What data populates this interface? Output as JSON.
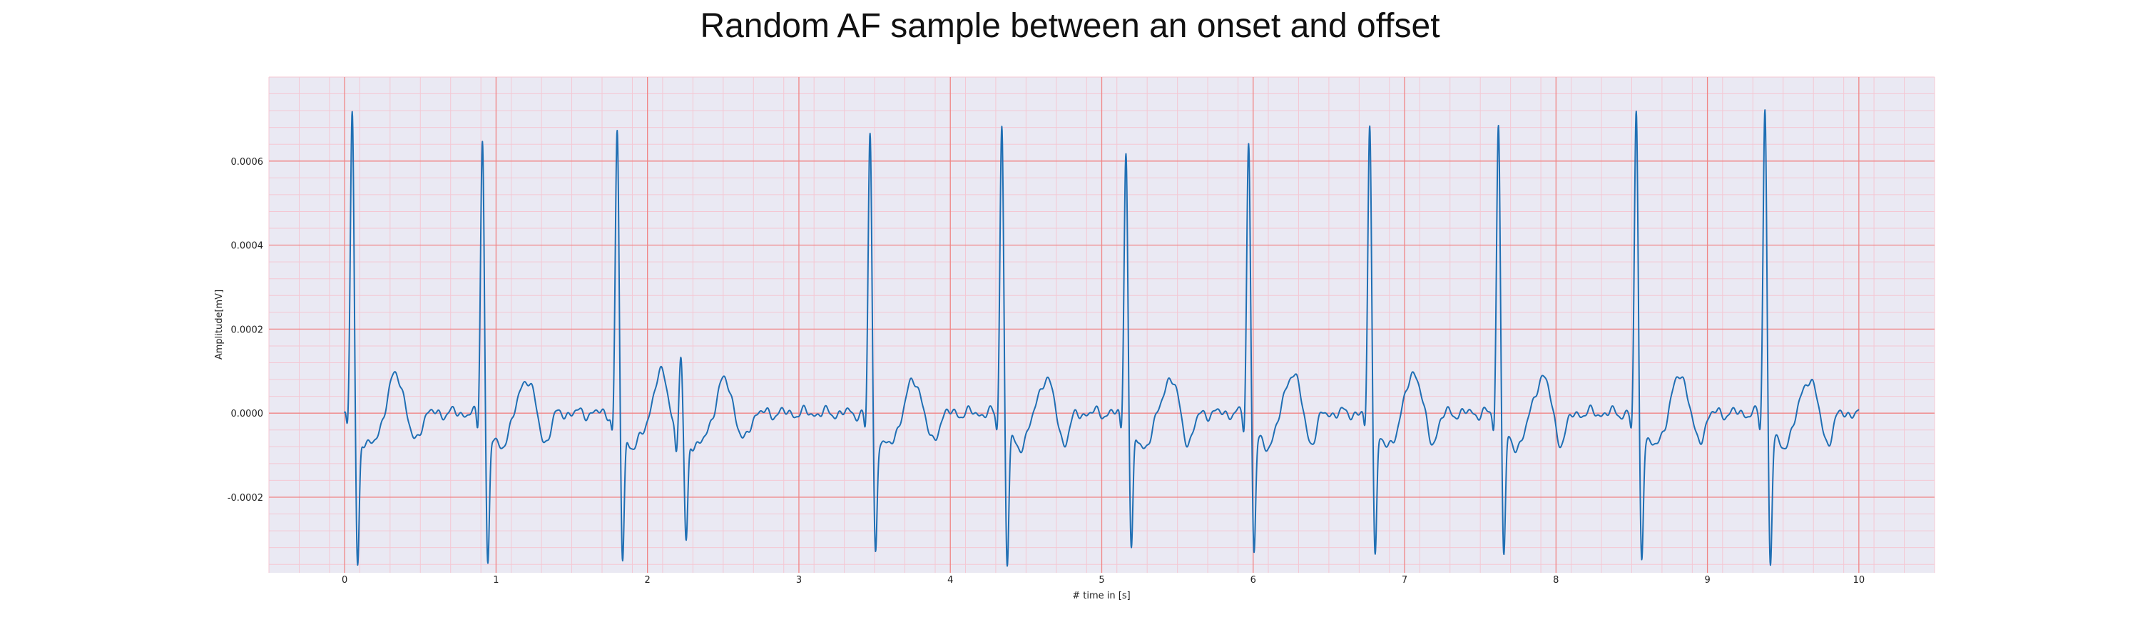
{
  "chart_data": {
    "type": "line",
    "title": "Random AF sample between an onset and offset",
    "xlabel": "# time in [s]",
    "ylabel": "Amplitude[mV]",
    "xlim": [
      -0.5,
      10.5
    ],
    "ylim": [
      -0.00038,
      0.0008
    ],
    "x_ticks": [
      0,
      1,
      2,
      3,
      4,
      5,
      6,
      7,
      8,
      9,
      10
    ],
    "x_tick_labels": [
      "0",
      "1",
      "2",
      "3",
      "4",
      "5",
      "6",
      "7",
      "8",
      "9",
      "10"
    ],
    "y_ticks": [
      -0.0002,
      0.0,
      0.0002,
      0.0004,
      0.0006
    ],
    "y_tick_labels": [
      "-0.0002",
      "0.0000",
      "0.0002",
      "0.0004",
      "0.0006"
    ],
    "grid": true,
    "minor_grid": true,
    "legend": "none",
    "colors": {
      "line": "#1f6fb4",
      "background": "#eae9f3",
      "major_grid": "#f08585",
      "minor_grid": "#f4c7d3"
    },
    "series": [
      {
        "beats": [
          {
            "t": 0.05,
            "r": 0.00073,
            "s": -0.00033,
            "twave": 9.5e-05
          },
          {
            "t": 0.91,
            "r": 0.00067,
            "s": -0.00033,
            "twave": 8.5e-05
          },
          {
            "t": 1.8,
            "r": 0.000675,
            "s": -0.00032,
            "twave": 9.5e-05
          },
          {
            "t": 2.22,
            "r": 0.00021,
            "s": -0.00024,
            "twave": 8e-05
          },
          {
            "t": 3.47,
            "r": 0.00068,
            "s": -0.0003,
            "twave": 8e-05
          },
          {
            "t": 4.34,
            "r": 0.000705,
            "s": -0.00033,
            "twave": 8.5e-05
          },
          {
            "t": 5.16,
            "r": 0.000645,
            "s": -0.0003,
            "twave": 8.5e-05
          },
          {
            "t": 5.97,
            "r": 0.00066,
            "s": -0.0003,
            "twave": 0.0001
          },
          {
            "t": 6.77,
            "r": 0.0007,
            "s": -0.0003,
            "twave": 0.0001
          },
          {
            "t": 7.62,
            "r": 0.000705,
            "s": -0.00031,
            "twave": 9e-05
          },
          {
            "t": 8.53,
            "r": 0.00073,
            "s": -0.00031,
            "twave": 9.5e-05
          },
          {
            "t": 9.38,
            "r": 0.000745,
            "s": -0.00033,
            "twave": 8.5e-05
          }
        ],
        "end_x": 10.0,
        "end_y": 0.0
      }
    ]
  }
}
